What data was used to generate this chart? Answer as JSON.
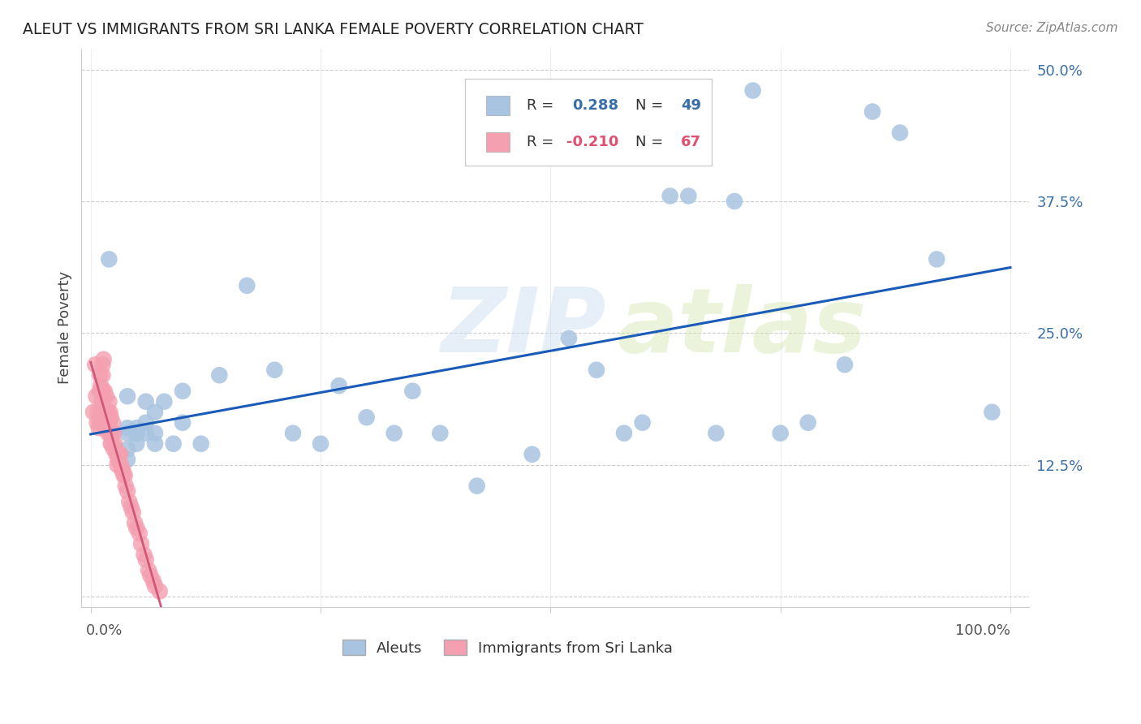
{
  "title": "ALEUT VS IMMIGRANTS FROM SRI LANKA FEMALE POVERTY CORRELATION CHART",
  "source": "Source: ZipAtlas.com",
  "ylabel": "Female Poverty",
  "aleuts_R": 0.288,
  "aleuts_N": 49,
  "srilanka_R": -0.21,
  "srilanka_N": 67,
  "aleut_color": "#a8c4e0",
  "srilanka_color": "#f4a0b0",
  "aleut_line_color": "#1a5ab8",
  "srilanka_line_color": "#d05878",
  "background_color": "#ffffff",
  "xlim": [
    0.0,
    1.0
  ],
  "ylim": [
    0.0,
    0.52
  ],
  "yticks": [
    0.0,
    0.125,
    0.25,
    0.375,
    0.5
  ],
  "ytick_labels": [
    "",
    "12.5%",
    "25.0%",
    "37.5%",
    "50.0%"
  ],
  "aleuts_x": [
    0.02,
    0.04,
    0.04,
    0.04,
    0.04,
    0.04,
    0.05,
    0.05,
    0.05,
    0.05,
    0.06,
    0.06,
    0.06,
    0.07,
    0.07,
    0.07,
    0.08,
    0.09,
    0.1,
    0.1,
    0.12,
    0.14,
    0.17,
    0.2,
    0.22,
    0.25,
    0.27,
    0.3,
    0.33,
    0.35,
    0.38,
    0.42,
    0.48,
    0.52,
    0.55,
    0.58,
    0.6,
    0.63,
    0.65,
    0.68,
    0.7,
    0.72,
    0.75,
    0.78,
    0.82,
    0.85,
    0.88,
    0.92,
    0.98
  ],
  "aleuts_y": [
    0.32,
    0.16,
    0.155,
    0.14,
    0.13,
    0.19,
    0.155,
    0.145,
    0.16,
    0.155,
    0.165,
    0.155,
    0.185,
    0.145,
    0.155,
    0.175,
    0.185,
    0.145,
    0.195,
    0.165,
    0.145,
    0.21,
    0.295,
    0.215,
    0.155,
    0.145,
    0.2,
    0.17,
    0.155,
    0.195,
    0.155,
    0.105,
    0.135,
    0.245,
    0.215,
    0.155,
    0.165,
    0.38,
    0.38,
    0.155,
    0.375,
    0.48,
    0.155,
    0.165,
    0.22,
    0.46,
    0.44,
    0.32,
    0.175
  ],
  "srilanka_x": [
    0.003,
    0.005,
    0.006,
    0.007,
    0.008,
    0.009,
    0.01,
    0.01,
    0.01,
    0.011,
    0.011,
    0.012,
    0.012,
    0.013,
    0.013,
    0.013,
    0.014,
    0.014,
    0.015,
    0.015,
    0.016,
    0.016,
    0.017,
    0.017,
    0.018,
    0.018,
    0.019,
    0.019,
    0.02,
    0.02,
    0.021,
    0.021,
    0.022,
    0.022,
    0.023,
    0.023,
    0.024,
    0.025,
    0.025,
    0.026,
    0.027,
    0.028,
    0.029,
    0.03,
    0.031,
    0.032,
    0.033,
    0.034,
    0.035,
    0.036,
    0.037,
    0.038,
    0.04,
    0.042,
    0.044,
    0.046,
    0.048,
    0.05,
    0.053,
    0.055,
    0.058,
    0.06,
    0.063,
    0.065,
    0.068,
    0.07,
    0.075
  ],
  "srilanka_y": [
    0.175,
    0.22,
    0.19,
    0.165,
    0.175,
    0.16,
    0.165,
    0.21,
    0.195,
    0.165,
    0.2,
    0.175,
    0.185,
    0.21,
    0.22,
    0.195,
    0.175,
    0.225,
    0.175,
    0.195,
    0.165,
    0.175,
    0.17,
    0.19,
    0.165,
    0.175,
    0.155,
    0.175,
    0.165,
    0.185,
    0.175,
    0.155,
    0.17,
    0.145,
    0.155,
    0.145,
    0.165,
    0.155,
    0.14,
    0.145,
    0.14,
    0.135,
    0.125,
    0.13,
    0.135,
    0.135,
    0.125,
    0.12,
    0.12,
    0.115,
    0.115,
    0.105,
    0.1,
    0.09,
    0.085,
    0.08,
    0.07,
    0.065,
    0.06,
    0.05,
    0.04,
    0.035,
    0.025,
    0.02,
    0.015,
    0.01,
    0.005
  ]
}
